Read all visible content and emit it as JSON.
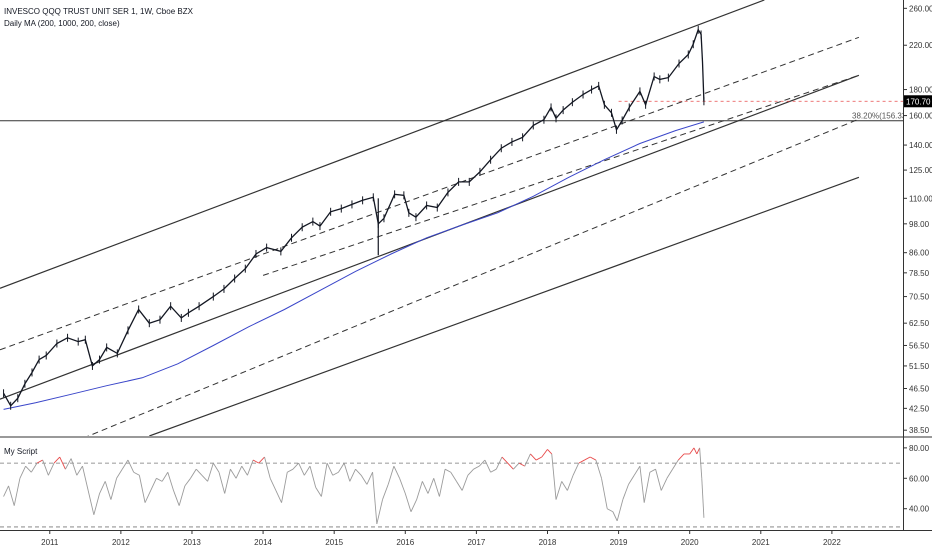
{
  "chart_data": {
    "type": "line",
    "title": "INVESCO QQQ TRUST UNIT SER 1, 1W, Cboe BZX",
    "indicator_label": "Daily MA (200, 1000, 200, close)",
    "sub_indicator_label": "My Script",
    "y_scale": "log",
    "y_ticks": [
      "260.00",
      "220.00",
      "180.00",
      "160.00",
      "140.00",
      "125.00",
      "110.00",
      "98.00",
      "86.00",
      "78.50",
      "70.50",
      "62.50",
      "56.50",
      "51.50",
      "46.50",
      "42.50",
      "38.50"
    ],
    "y_tick_values": [
      260,
      220,
      180,
      160,
      140,
      125,
      110,
      98,
      86,
      78.5,
      70.5,
      62.5,
      56.5,
      51.5,
      46.5,
      42.5,
      38.5
    ],
    "x_ticks": [
      "2011",
      "2012",
      "2013",
      "2014",
      "2015",
      "2016",
      "2017",
      "2018",
      "2019",
      "2020",
      "2021",
      "2022"
    ],
    "x_tick_values": [
      2011,
      2012,
      2013,
      2014,
      2015,
      2016,
      2017,
      2018,
      2019,
      2020,
      2021,
      2022
    ],
    "x_range": [
      2010.3,
      2023.0
    ],
    "y_range": [
      37.5,
      270
    ],
    "last_price": {
      "label": "170.70",
      "value": 170.7,
      "color": "#000000"
    },
    "fib_level": {
      "label": "38.20%(156.33)",
      "value": 156.33
    },
    "horizontal_line": 156.33,
    "price_series": {
      "name": "QQQ",
      "color": "#131722",
      "points": [
        [
          2010.35,
          45.5
        ],
        [
          2010.45,
          43.0
        ],
        [
          2010.55,
          44.5
        ],
        [
          2010.65,
          47.5
        ],
        [
          2010.75,
          50.0
        ],
        [
          2010.85,
          53.0
        ],
        [
          2010.95,
          54.0
        ],
        [
          2011.1,
          57.0
        ],
        [
          2011.25,
          58.5
        ],
        [
          2011.4,
          57.5
        ],
        [
          2011.5,
          58.0
        ],
        [
          2011.6,
          51.5
        ],
        [
          2011.7,
          53.0
        ],
        [
          2011.8,
          56.0
        ],
        [
          2011.95,
          54.5
        ],
        [
          2012.1,
          60.5
        ],
        [
          2012.25,
          66.5
        ],
        [
          2012.4,
          62.5
        ],
        [
          2012.55,
          63.5
        ],
        [
          2012.7,
          67.5
        ],
        [
          2012.85,
          64.0
        ],
        [
          2012.95,
          65.5
        ],
        [
          2013.1,
          67.5
        ],
        [
          2013.3,
          70.5
        ],
        [
          2013.45,
          73.0
        ],
        [
          2013.6,
          76.5
        ],
        [
          2013.75,
          80.0
        ],
        [
          2013.9,
          85.5
        ],
        [
          2014.05,
          88.0
        ],
        [
          2014.25,
          86.5
        ],
        [
          2014.4,
          92.0
        ],
        [
          2014.55,
          96.5
        ],
        [
          2014.7,
          99.0
        ],
        [
          2014.8,
          97.0
        ],
        [
          2014.95,
          103.5
        ],
        [
          2015.1,
          105.0
        ],
        [
          2015.25,
          107.0
        ],
        [
          2015.4,
          109.0
        ],
        [
          2015.55,
          110.5
        ],
        [
          2015.62,
          98.0
        ],
        [
          2015.7,
          100.5
        ],
        [
          2015.85,
          112.0
        ],
        [
          2015.98,
          111.5
        ],
        [
          2016.05,
          103.0
        ],
        [
          2016.15,
          101.0
        ],
        [
          2016.3,
          106.5
        ],
        [
          2016.45,
          105.5
        ],
        [
          2016.6,
          113.0
        ],
        [
          2016.75,
          118.5
        ],
        [
          2016.9,
          118.5
        ],
        [
          2017.05,
          124.0
        ],
        [
          2017.2,
          131.0
        ],
        [
          2017.35,
          138.0
        ],
        [
          2017.5,
          142.0
        ],
        [
          2017.65,
          145.0
        ],
        [
          2017.8,
          153.0
        ],
        [
          2017.95,
          157.0
        ],
        [
          2018.05,
          166.0
        ],
        [
          2018.12,
          158.0
        ],
        [
          2018.22,
          164.0
        ],
        [
          2018.35,
          170.0
        ],
        [
          2018.5,
          176.0
        ],
        [
          2018.62,
          180.0
        ],
        [
          2018.72,
          183.0
        ],
        [
          2018.8,
          168.0
        ],
        [
          2018.9,
          162.0
        ],
        [
          2018.97,
          150.0
        ],
        [
          2019.05,
          156.5
        ],
        [
          2019.15,
          166.0
        ],
        [
          2019.3,
          178.5
        ],
        [
          2019.38,
          168.0
        ],
        [
          2019.5,
          191.0
        ],
        [
          2019.58,
          188.5
        ],
        [
          2019.7,
          190.0
        ],
        [
          2019.85,
          202.5
        ],
        [
          2019.98,
          211.0
        ],
        [
          2020.05,
          221.0
        ],
        [
          2020.12,
          236.0
        ],
        [
          2020.16,
          231.0
        ],
        [
          2020.18,
          204.0
        ],
        [
          2020.2,
          170.7
        ]
      ]
    },
    "ma_series": {
      "name": "MA",
      "color": "#3a46c9",
      "points": [
        [
          2010.35,
          42.3
        ],
        [
          2010.8,
          43.6
        ],
        [
          2011.3,
          45.3
        ],
        [
          2011.8,
          47.1
        ],
        [
          2012.3,
          48.8
        ],
        [
          2012.8,
          52.0
        ],
        [
          2013.3,
          56.5
        ],
        [
          2013.8,
          61.5
        ],
        [
          2014.3,
          66.5
        ],
        [
          2014.8,
          72.5
        ],
        [
          2015.3,
          79.0
        ],
        [
          2015.8,
          85.5
        ],
        [
          2016.3,
          92.0
        ],
        [
          2016.8,
          97.5
        ],
        [
          2017.3,
          103.0
        ],
        [
          2017.8,
          111.0
        ],
        [
          2018.3,
          121.0
        ],
        [
          2018.8,
          131.0
        ],
        [
          2019.3,
          141.0
        ],
        [
          2019.8,
          149.5
        ],
        [
          2020.2,
          155.5
        ]
      ]
    },
    "channel_lines": [
      {
        "style": "solid",
        "from": [
          2010.3,
          73.2
        ],
        "to": [
          2021.05,
          270.0
        ]
      },
      {
        "style": "dashed",
        "from": [
          2010.3,
          55.4
        ],
        "to": [
          2022.38,
          228.0
        ]
      },
      {
        "style": "dashed",
        "from": [
          2014.0,
          77.6
        ],
        "to": [
          2022.38,
          192.0
        ]
      },
      {
        "style": "solid",
        "from": [
          2010.3,
          44.3
        ],
        "to": [
          2022.38,
          192.0
        ]
      },
      {
        "style": "dashed",
        "from": [
          2010.3,
          31.8
        ],
        "to": [
          2022.38,
          157.5
        ]
      },
      {
        "style": "solid",
        "from": [
          2012.4,
          37.5
        ],
        "to": [
          2022.38,
          121.0
        ]
      }
    ],
    "oscillator": {
      "name": "My Script",
      "y_ticks": [
        "80.00",
        "60.00",
        "40.00"
      ],
      "y_tick_values": [
        80,
        60,
        40
      ],
      "y_range": [
        26.0,
        86.5
      ],
      "upper_band": 70,
      "lower_band": 28,
      "color": "#9b9b9b",
      "overbought_color": "#e84a4a",
      "points": [
        [
          2010.35,
          48
        ],
        [
          2010.42,
          55
        ],
        [
          2010.5,
          42
        ],
        [
          2010.58,
          60
        ],
        [
          2010.66,
          68
        ],
        [
          2010.74,
          64
        ],
        [
          2010.82,
          70
        ],
        [
          2010.9,
          72
        ],
        [
          2010.98,
          62
        ],
        [
          2011.06,
          70
        ],
        [
          2011.14,
          74
        ],
        [
          2011.22,
          66
        ],
        [
          2011.3,
          73
        ],
        [
          2011.38,
          62
        ],
        [
          2011.46,
          68
        ],
        [
          2011.54,
          52
        ],
        [
          2011.62,
          36
        ],
        [
          2011.7,
          50
        ],
        [
          2011.78,
          58
        ],
        [
          2011.86,
          46
        ],
        [
          2011.94,
          60
        ],
        [
          2012.02,
          66
        ],
        [
          2012.1,
          72
        ],
        [
          2012.18,
          64
        ],
        [
          2012.26,
          62
        ],
        [
          2012.34,
          44
        ],
        [
          2012.42,
          52
        ],
        [
          2012.5,
          60
        ],
        [
          2012.58,
          58
        ],
        [
          2012.66,
          64
        ],
        [
          2012.74,
          52
        ],
        [
          2012.82,
          42
        ],
        [
          2012.9,
          55
        ],
        [
          2012.98,
          60
        ],
        [
          2013.06,
          66
        ],
        [
          2013.14,
          62
        ],
        [
          2013.22,
          58
        ],
        [
          2013.3,
          70
        ],
        [
          2013.38,
          64
        ],
        [
          2013.46,
          50
        ],
        [
          2013.54,
          66
        ],
        [
          2013.62,
          60
        ],
        [
          2013.7,
          68
        ],
        [
          2013.78,
          62
        ],
        [
          2013.86,
          72
        ],
        [
          2013.94,
          70
        ],
        [
          2014.02,
          74
        ],
        [
          2014.1,
          60
        ],
        [
          2014.18,
          52
        ],
        [
          2014.26,
          44
        ],
        [
          2014.34,
          64
        ],
        [
          2014.42,
          66
        ],
        [
          2014.5,
          70
        ],
        [
          2014.58,
          62
        ],
        [
          2014.66,
          68
        ],
        [
          2014.74,
          54
        ],
        [
          2014.82,
          48
        ],
        [
          2014.9,
          70
        ],
        [
          2014.98,
          62
        ],
        [
          2015.06,
          64
        ],
        [
          2015.14,
          70
        ],
        [
          2015.22,
          58
        ],
        [
          2015.3,
          66
        ],
        [
          2015.38,
          62
        ],
        [
          2015.46,
          56
        ],
        [
          2015.54,
          64
        ],
        [
          2015.6,
          30
        ],
        [
          2015.68,
          46
        ],
        [
          2015.76,
          56
        ],
        [
          2015.84,
          68
        ],
        [
          2015.92,
          60
        ],
        [
          2016.0,
          50
        ],
        [
          2016.08,
          38
        ],
        [
          2016.16,
          46
        ],
        [
          2016.24,
          58
        ],
        [
          2016.32,
          50
        ],
        [
          2016.4,
          60
        ],
        [
          2016.48,
          48
        ],
        [
          2016.56,
          66
        ],
        [
          2016.64,
          64
        ],
        [
          2016.72,
          58
        ],
        [
          2016.8,
          52
        ],
        [
          2016.88,
          62
        ],
        [
          2016.96,
          66
        ],
        [
          2017.04,
          68
        ],
        [
          2017.12,
          72
        ],
        [
          2017.2,
          64
        ],
        [
          2017.28,
          66
        ],
        [
          2017.36,
          74
        ],
        [
          2017.44,
          70
        ],
        [
          2017.52,
          66
        ],
        [
          2017.6,
          70
        ],
        [
          2017.68,
          68
        ],
        [
          2017.76,
          76
        ],
        [
          2017.84,
          72
        ],
        [
          2017.92,
          74
        ],
        [
          2018.0,
          79
        ],
        [
          2018.06,
          76
        ],
        [
          2018.12,
          46
        ],
        [
          2018.2,
          58
        ],
        [
          2018.28,
          52
        ],
        [
          2018.36,
          62
        ],
        [
          2018.44,
          70
        ],
        [
          2018.52,
          72
        ],
        [
          2018.6,
          74
        ],
        [
          2018.68,
          72
        ],
        [
          2018.76,
          60
        ],
        [
          2018.84,
          40
        ],
        [
          2018.92,
          38
        ],
        [
          2018.98,
          32
        ],
        [
          2019.06,
          46
        ],
        [
          2019.14,
          56
        ],
        [
          2019.22,
          62
        ],
        [
          2019.3,
          68
        ],
        [
          2019.36,
          44
        ],
        [
          2019.44,
          64
        ],
        [
          2019.52,
          66
        ],
        [
          2019.6,
          52
        ],
        [
          2019.68,
          60
        ],
        [
          2019.76,
          66
        ],
        [
          2019.84,
          72
        ],
        [
          2019.92,
          76
        ],
        [
          2020.0,
          76
        ],
        [
          2020.06,
          80
        ],
        [
          2020.1,
          76
        ],
        [
          2020.14,
          80
        ],
        [
          2020.17,
          60
        ],
        [
          2020.2,
          34
        ]
      ]
    }
  }
}
